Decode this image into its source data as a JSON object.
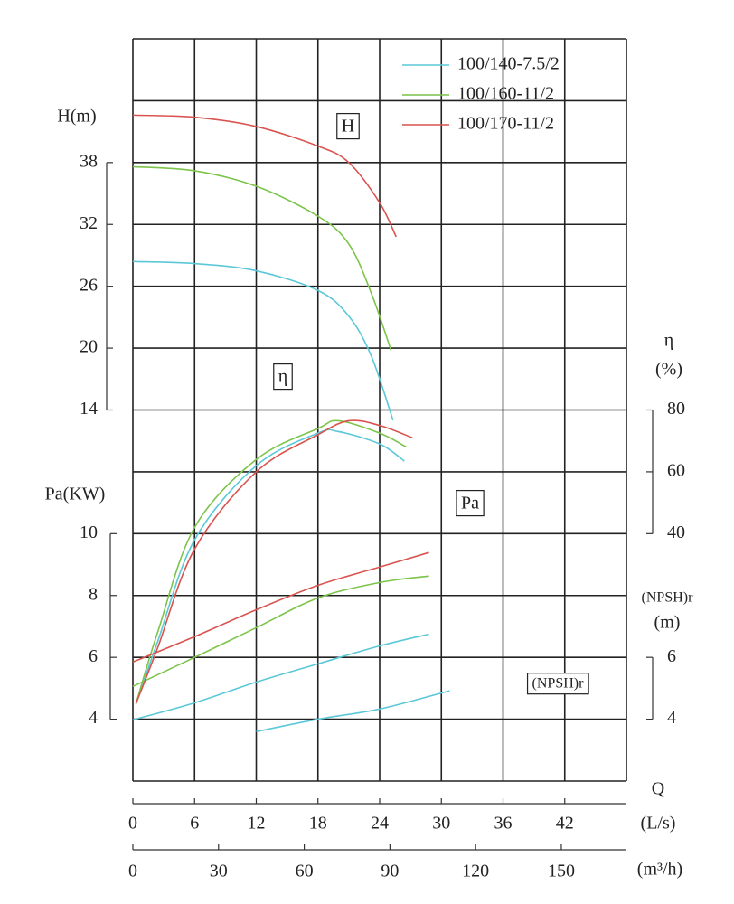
{
  "chart_data": {
    "type": "line",
    "xlabel": "Q",
    "xunit": "(L/s)",
    "xlim": [
      0,
      48
    ],
    "xticks": [
      0,
      6,
      12,
      18,
      24,
      30,
      36,
      42
    ],
    "xgrid": [
      0,
      6,
      12,
      18,
      24,
      30,
      36,
      42,
      48
    ],
    "x2label": "(m³/h)",
    "x2lim": [
      0,
      172.8
    ],
    "x2ticks": [
      0,
      30,
      60,
      90,
      120,
      150
    ],
    "ylabel": "H(m)",
    "ylim": [
      -22,
      50
    ],
    "yticks": [
      14,
      20,
      26,
      32,
      38
    ],
    "ygrid": [
      -22,
      -16,
      -10,
      -4,
      2,
      8,
      14,
      20,
      26,
      32,
      38,
      44,
      50
    ],
    "y2label": "η",
    "y2unit": "(%)",
    "y2lim": [
      -40,
      200
    ],
    "y2ticks": [
      40,
      60,
      80
    ],
    "y3label": "Pa(KW)",
    "y3lim": [
      2,
      26
    ],
    "y3ticks": [
      4,
      6,
      8,
      10
    ],
    "y4label": "(NPSH)r",
    "y4unit": "(m)",
    "y4lim": [
      2,
      26
    ],
    "y4ticks": [
      4,
      6
    ],
    "annotations": [
      "H",
      "η",
      "Pa",
      "(NPSH)r"
    ],
    "legend": "upper right",
    "series": [
      {
        "name": "100/140-7.5/2",
        "color": "#5bc8d8",
        "curves": [
          {
            "axis": "y",
            "x": [
              0,
              6,
              12,
              18,
              21,
              23.2,
              25.3
            ],
            "values": [
              28.4,
              28.2,
              27.5,
              25.6,
              23.1,
              19.2,
              13.0
            ]
          },
          {
            "axis": "y2",
            "x": [
              0.3,
              2.4,
              6,
              12,
              18,
              20,
              24,
              26.4
            ],
            "values": [
              -15,
              5,
              38,
              62,
              72.5,
              73,
              69,
              63.5
            ]
          },
          {
            "axis": "y3",
            "x": [
              0,
              6,
              12,
              18,
              24,
              28.8
            ],
            "values": [
              3.98,
              4.53,
              5.2,
              5.79,
              6.37,
              6.75
            ]
          },
          {
            "axis": "y4",
            "x": [
              12,
              18,
              24,
              30.8
            ],
            "values": [
              3.6,
              4.0,
              4.33,
              4.92
            ]
          }
        ]
      },
      {
        "name": "100/160-11/2",
        "color": "#7cc44a",
        "curves": [
          {
            "axis": "y",
            "x": [
              0,
              6,
              12,
              18,
              21,
              23.2,
              25.1
            ],
            "values": [
              37.6,
              37.2,
              35.7,
              32.8,
              30.1,
              25.3,
              19.8
            ]
          },
          {
            "axis": "y2",
            "x": [
              0.3,
              2.4,
              6,
              12,
              18,
              20,
              24,
              26.6
            ],
            "values": [
              -15,
              8,
              42,
              64,
              74,
              76.5,
              72.5,
              68
            ]
          },
          {
            "axis": "y3",
            "x": [
              0,
              6,
              12,
              18,
              24,
              28.8
            ],
            "values": [
              5.06,
              6.0,
              6.96,
              7.92,
              8.42,
              8.63
            ]
          }
        ]
      },
      {
        "name": "100/170-11/2",
        "color": "#d9534f",
        "curves": [
          {
            "axis": "y",
            "x": [
              0,
              6,
              12,
              18,
              21,
              24,
              25.6
            ],
            "values": [
              42.6,
              42.4,
              41.5,
              39.6,
              38.0,
              34.1,
              30.8
            ]
          },
          {
            "axis": "y2",
            "x": [
              0.3,
              2.4,
              6,
              12,
              18,
              21,
              24,
              27.2
            ],
            "values": [
              -15,
              3,
              35,
              60,
              72,
              76.5,
              75,
              71
            ]
          },
          {
            "axis": "y3",
            "x": [
              0,
              6,
              12,
              18,
              24,
              28.8
            ],
            "values": [
              5.85,
              6.67,
              7.54,
              8.33,
              8.92,
              9.39
            ]
          }
        ]
      }
    ]
  }
}
